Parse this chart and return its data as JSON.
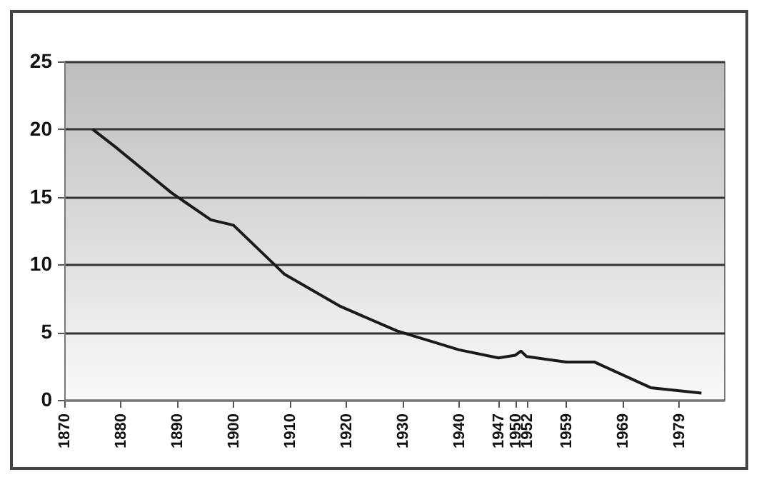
{
  "chart_data": {
    "type": "line",
    "x": [
      1875,
      1879,
      1889,
      1896,
      1900,
      1909,
      1919,
      1929,
      1940,
      1947,
      1950,
      1951,
      1952,
      1959,
      1964,
      1974,
      1983
    ],
    "series": [
      {
        "color": "#1a1a1a",
        "values": [
          20,
          18.7,
          15.3,
          13.3,
          12.9,
          9.3,
          6.9,
          5.1,
          3.7,
          3.1,
          3.3,
          3.6,
          3.2,
          2.8,
          2.8,
          0.9,
          0.5
        ]
      }
    ],
    "xlim": [
      1870,
      1987
    ],
    "xticks": [
      1870,
      1880,
      1890,
      1900,
      1910,
      1920,
      1930,
      1940,
      1947,
      1950,
      1952,
      1959,
      1969,
      1979
    ],
    "ylim": [
      0,
      25
    ],
    "yticks": [
      0,
      5,
      10,
      15,
      20,
      25
    ],
    "grid": "y",
    "marker": "none",
    "line_style": "solid"
  }
}
